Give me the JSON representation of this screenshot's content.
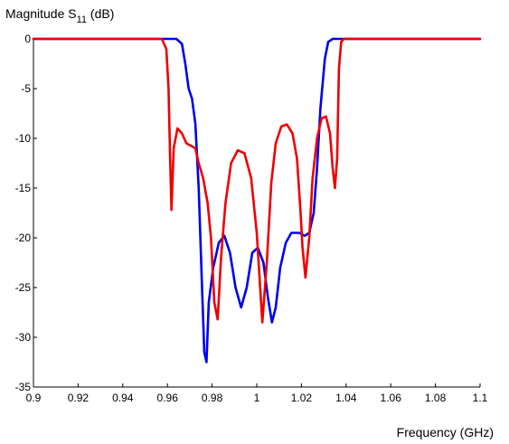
{
  "chart_data": {
    "type": "line",
    "ylabel": "Magnitude S",
    "ylabel_sub": "11",
    "ylabel_suffix": " (dB)",
    "xlabel": "Frequency (GHz)",
    "xlim": [
      0.9,
      1.1
    ],
    "ylim": [
      -35,
      0
    ],
    "x_ticks": [
      "0.9",
      "0.92",
      "0.94",
      "0.96",
      "0.98",
      "1",
      "1.02",
      "1.04",
      "1.06",
      "1.08",
      "1.1"
    ],
    "y_ticks": [
      "0",
      "-5",
      "-10",
      "-15",
      "-20",
      "-25",
      "-30",
      "-35"
    ],
    "grid": false,
    "series": [
      {
        "color": "#0000ee",
        "points": [
          [
            0.9,
            0
          ],
          [
            0.964,
            0
          ],
          [
            0.9665,
            -0.5
          ],
          [
            0.968,
            -2.5
          ],
          [
            0.9695,
            -5
          ],
          [
            0.971,
            -6
          ],
          [
            0.9725,
            -8.5
          ],
          [
            0.974,
            -15
          ],
          [
            0.9755,
            -25
          ],
          [
            0.9765,
            -31.5
          ],
          [
            0.9775,
            -32.5
          ],
          [
            0.9785,
            -26.5
          ],
          [
            0.9805,
            -23
          ],
          [
            0.983,
            -20.5
          ],
          [
            0.9855,
            -19.8
          ],
          [
            0.988,
            -21.5
          ],
          [
            0.9905,
            -25
          ],
          [
            0.993,
            -27
          ],
          [
            0.9955,
            -25
          ],
          [
            0.998,
            -21.5
          ],
          [
            1.0005,
            -21
          ],
          [
            1.003,
            -22.5
          ],
          [
            1.005,
            -26
          ],
          [
            1.0068,
            -28.5
          ],
          [
            1.0085,
            -27
          ],
          [
            1.0105,
            -23
          ],
          [
            1.013,
            -20.5
          ],
          [
            1.0155,
            -19.5
          ],
          [
            1.019,
            -19.5
          ],
          [
            1.0215,
            -19.8
          ],
          [
            1.0235,
            -19.5
          ],
          [
            1.0255,
            -17.5
          ],
          [
            1.027,
            -13
          ],
          [
            1.0285,
            -7
          ],
          [
            1.0305,
            -2
          ],
          [
            1.032,
            -0.3
          ],
          [
            1.034,
            0
          ],
          [
            1.1,
            0
          ]
        ]
      },
      {
        "color": "#ee0000",
        "points": [
          [
            0.9,
            0
          ],
          [
            0.9575,
            0
          ],
          [
            0.9595,
            -1
          ],
          [
            0.9605,
            -5
          ],
          [
            0.9612,
            -12
          ],
          [
            0.9618,
            -17.2
          ],
          [
            0.9628,
            -11
          ],
          [
            0.9645,
            -9
          ],
          [
            0.9665,
            -9.5
          ],
          [
            0.9685,
            -10.5
          ],
          [
            0.971,
            -10.8
          ],
          [
            0.9725,
            -11
          ],
          [
            0.974,
            -12.5
          ],
          [
            0.976,
            -14
          ],
          [
            0.978,
            -16.5
          ],
          [
            0.9795,
            -20
          ],
          [
            0.981,
            -26.5
          ],
          [
            0.9825,
            -28.2
          ],
          [
            0.984,
            -22
          ],
          [
            0.986,
            -16.5
          ],
          [
            0.9885,
            -12.5
          ],
          [
            0.9915,
            -11.2
          ],
          [
            0.9945,
            -11.5
          ],
          [
            0.9975,
            -14
          ],
          [
            1.0,
            -19.5
          ],
          [
            1.0025,
            -28.5
          ],
          [
            1.0045,
            -22.5
          ],
          [
            1.0065,
            -14.5
          ],
          [
            1.0085,
            -10.5
          ],
          [
            1.011,
            -8.8
          ],
          [
            1.0135,
            -8.6
          ],
          [
            1.016,
            -9.5
          ],
          [
            1.018,
            -12
          ],
          [
            1.0195,
            -17
          ],
          [
            1.0205,
            -21
          ],
          [
            1.0218,
            -24
          ],
          [
            1.0235,
            -20
          ],
          [
            1.025,
            -14
          ],
          [
            1.027,
            -10
          ],
          [
            1.029,
            -8
          ],
          [
            1.031,
            -7.8
          ],
          [
            1.0328,
            -9.5
          ],
          [
            1.034,
            -13
          ],
          [
            1.035,
            -15
          ],
          [
            1.036,
            -12
          ],
          [
            1.0368,
            -3
          ],
          [
            1.0378,
            -0.3
          ],
          [
            1.039,
            0
          ],
          [
            1.1,
            0
          ]
        ]
      }
    ]
  }
}
